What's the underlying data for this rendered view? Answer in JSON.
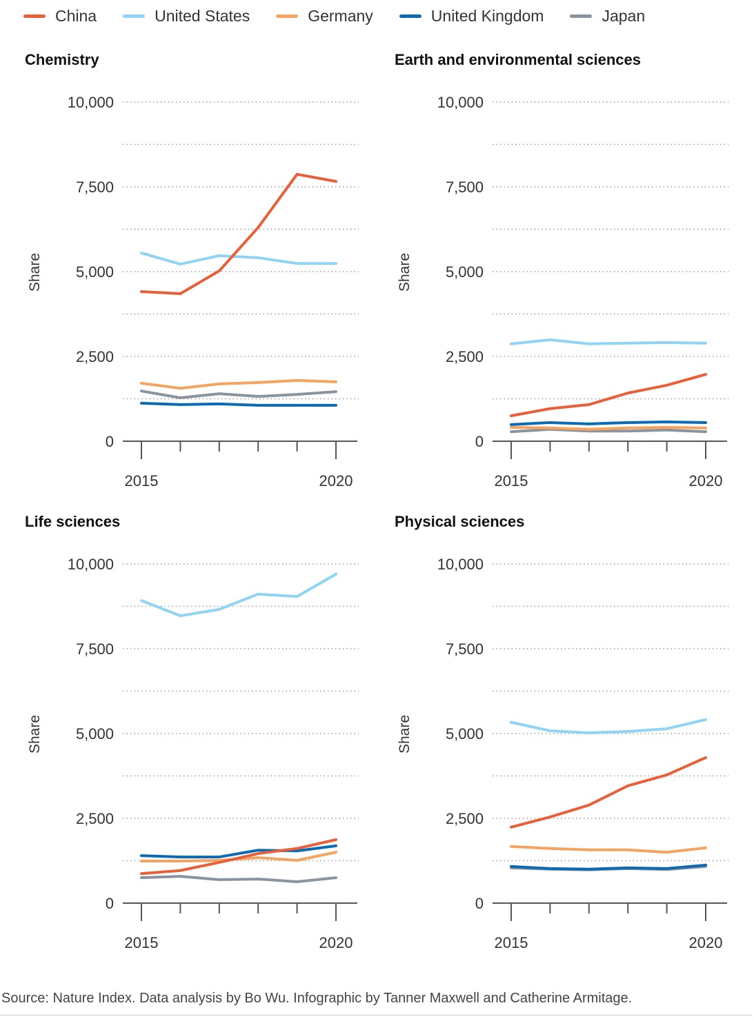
{
  "legend": [
    {
      "name": "China",
      "color": "#e8603a"
    },
    {
      "name": "United States",
      "color": "#8fd3f5"
    },
    {
      "name": "Germany",
      "color": "#f4a460"
    },
    {
      "name": "United Kingdom",
      "color": "#0a6ab4"
    },
    {
      "name": "Japan",
      "color": "#8a93a0"
    }
  ],
  "source": "Source: Nature Index. Data analysis by Bo Wu. Infographic by Tanner Maxwell and Catherine Armitage.",
  "chart_data": [
    {
      "type": "line",
      "title": "Chemistry",
      "ylabel": "Share",
      "ylim": [
        0,
        10000
      ],
      "yticks": [
        "0",
        "2,500",
        "5,000",
        "7,500",
        "10,000"
      ],
      "xticks": [
        "2015",
        "2020"
      ],
      "x": [
        2015,
        2016,
        2017,
        2018,
        2019,
        2020
      ],
      "grid": true,
      "legend": "top",
      "series": [
        {
          "name": "United States",
          "values": [
            5550,
            5220,
            5470,
            5410,
            5240,
            5240
          ]
        },
        {
          "name": "Japan",
          "values": [
            1480,
            1280,
            1400,
            1320,
            1380,
            1460
          ]
        },
        {
          "name": "Germany",
          "values": [
            1710,
            1560,
            1690,
            1730,
            1790,
            1750
          ]
        },
        {
          "name": "United Kingdom",
          "values": [
            1120,
            1080,
            1100,
            1060,
            1060,
            1060
          ]
        },
        {
          "name": "China",
          "values": [
            4410,
            4350,
            5020,
            6300,
            7870,
            7660
          ]
        }
      ]
    },
    {
      "type": "line",
      "title": "Earth and environmental sciences",
      "ylabel": "Share",
      "ylim": [
        0,
        10000
      ],
      "yticks": [
        "0",
        "2,500",
        "5,000",
        "7,500",
        "10,000"
      ],
      "xticks": [
        "2015",
        "2020"
      ],
      "x": [
        2015,
        2016,
        2017,
        2018,
        2019,
        2020
      ],
      "grid": true,
      "legend": "top",
      "series": [
        {
          "name": "United States",
          "values": [
            2870,
            2990,
            2870,
            2890,
            2910,
            2890
          ]
        },
        {
          "name": "Japan",
          "values": [
            280,
            350,
            300,
            300,
            330,
            280
          ]
        },
        {
          "name": "Germany",
          "values": [
            410,
            390,
            350,
            390,
            410,
            390
          ]
        },
        {
          "name": "United Kingdom",
          "values": [
            490,
            550,
            510,
            550,
            570,
            550
          ]
        },
        {
          "name": "China",
          "values": [
            750,
            960,
            1080,
            1420,
            1650,
            1970
          ]
        }
      ]
    },
    {
      "type": "line",
      "title": "Life sciences",
      "ylabel": "Share",
      "ylim": [
        0,
        10000
      ],
      "yticks": [
        "0",
        "2,500",
        "5,000",
        "7,500",
        "10,000"
      ],
      "xticks": [
        "2015",
        "2020"
      ],
      "x": [
        2015,
        2016,
        2017,
        2018,
        2019,
        2020
      ],
      "grid": true,
      "legend": "top",
      "series": [
        {
          "name": "United States",
          "values": [
            8920,
            8470,
            8660,
            9110,
            9040,
            9700
          ]
        },
        {
          "name": "Japan",
          "values": [
            750,
            790,
            690,
            710,
            630,
            750
          ]
        },
        {
          "name": "Germany",
          "values": [
            1240,
            1240,
            1260,
            1340,
            1260,
            1500
          ]
        },
        {
          "name": "United Kingdom",
          "values": [
            1400,
            1360,
            1360,
            1560,
            1540,
            1690
          ]
        },
        {
          "name": "China",
          "values": [
            870,
            960,
            1200,
            1460,
            1610,
            1870
          ]
        }
      ]
    },
    {
      "type": "line",
      "title": "Physical sciences",
      "ylabel": "Share",
      "ylim": [
        0,
        10000
      ],
      "yticks": [
        "0",
        "2,500",
        "5,000",
        "7,500",
        "10,000"
      ],
      "xticks": [
        "2015",
        "2020"
      ],
      "x": [
        2015,
        2016,
        2017,
        2018,
        2019,
        2020
      ],
      "grid": true,
      "legend": "top",
      "series": [
        {
          "name": "United States",
          "values": [
            5330,
            5080,
            5020,
            5060,
            5140,
            5410
          ]
        },
        {
          "name": "Japan",
          "values": [
            1040,
            1000,
            980,
            1020,
            990,
            1080
          ]
        },
        {
          "name": "Germany",
          "values": [
            1670,
            1610,
            1570,
            1570,
            1500,
            1630
          ]
        },
        {
          "name": "United Kingdom",
          "values": [
            1080,
            1020,
            1000,
            1040,
            1020,
            1120
          ]
        },
        {
          "name": "China",
          "values": [
            2240,
            2540,
            2890,
            3460,
            3780,
            4290
          ]
        }
      ]
    }
  ]
}
